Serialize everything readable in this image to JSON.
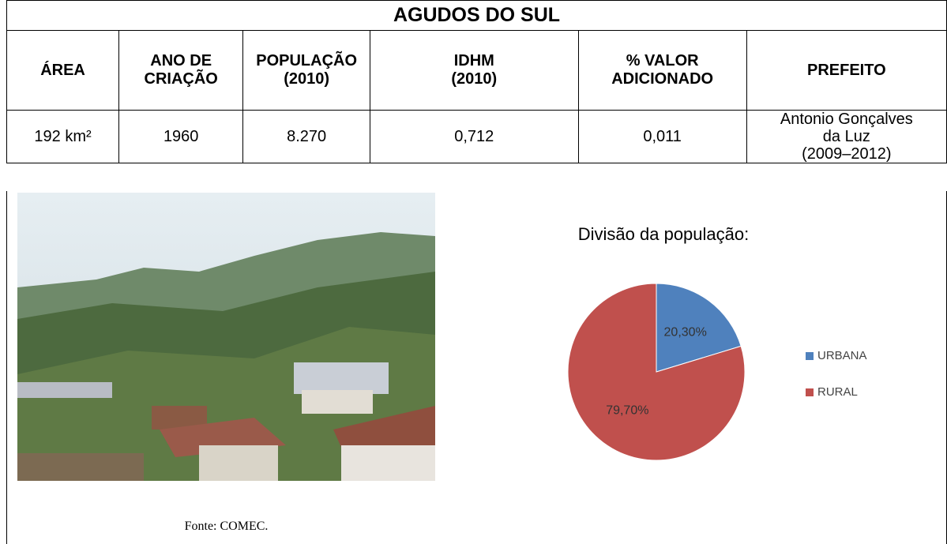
{
  "header": {
    "title": "AGUDOS DO SUL"
  },
  "table": {
    "headers": [
      [
        "ÁREA"
      ],
      [
        "ANO DE",
        "CRIAÇÃO"
      ],
      [
        "POPULAÇÃO",
        "(2010)"
      ],
      [
        "IDHM",
        "(2010)"
      ],
      [
        "% VALOR",
        "ADICIONADO"
      ],
      [
        "PREFEITO"
      ]
    ],
    "rows": [
      [
        [
          "192 km²"
        ],
        [
          "1960"
        ],
        [
          "8.270"
        ],
        [
          "0,712"
        ],
        [
          "0,011"
        ],
        [
          "Antonio Gonçalves",
          "da Luz",
          "(2009–2012)"
        ]
      ]
    ]
  },
  "photo": {
    "caption": "Fonte: COMEC."
  },
  "chart_data": {
    "type": "pie",
    "title": "Divisão da população:",
    "categories": [
      "URBANA",
      "RURAL"
    ],
    "values": [
      20.3,
      79.7
    ],
    "value_labels": [
      "20,30%",
      "79,70%"
    ],
    "colors": [
      "#4f81bd",
      "#c0504d"
    ],
    "legend": "right"
  }
}
